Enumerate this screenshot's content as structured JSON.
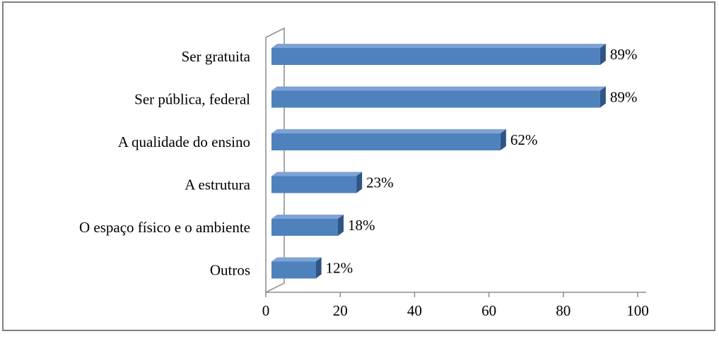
{
  "chart_data": {
    "type": "bar",
    "orientation": "horizontal",
    "style": "3d",
    "categories": [
      "Ser gratuita",
      "Ser pública, federal",
      "A qualidade do ensino",
      "A estrutura",
      "O espaço  físico e o ambiente",
      "Outros"
    ],
    "values": [
      89,
      89,
      62,
      23,
      18,
      12
    ],
    "value_labels": [
      "89%",
      "89%",
      "62%",
      "23%",
      "18%",
      "12%"
    ],
    "xlim": [
      0,
      100
    ],
    "xticks": [
      0,
      20,
      40,
      60,
      80,
      100
    ],
    "xtick_labels": [
      "0",
      "20",
      "40",
      "60",
      "80",
      "100"
    ],
    "grid": false,
    "legend": "none",
    "colors": {
      "bar_front": "#4F81BD",
      "bar_top": "#7FA2D6",
      "bar_side": "#2F5584",
      "axis": "#8C8C8C",
      "frame": "#7F7F7F"
    }
  }
}
